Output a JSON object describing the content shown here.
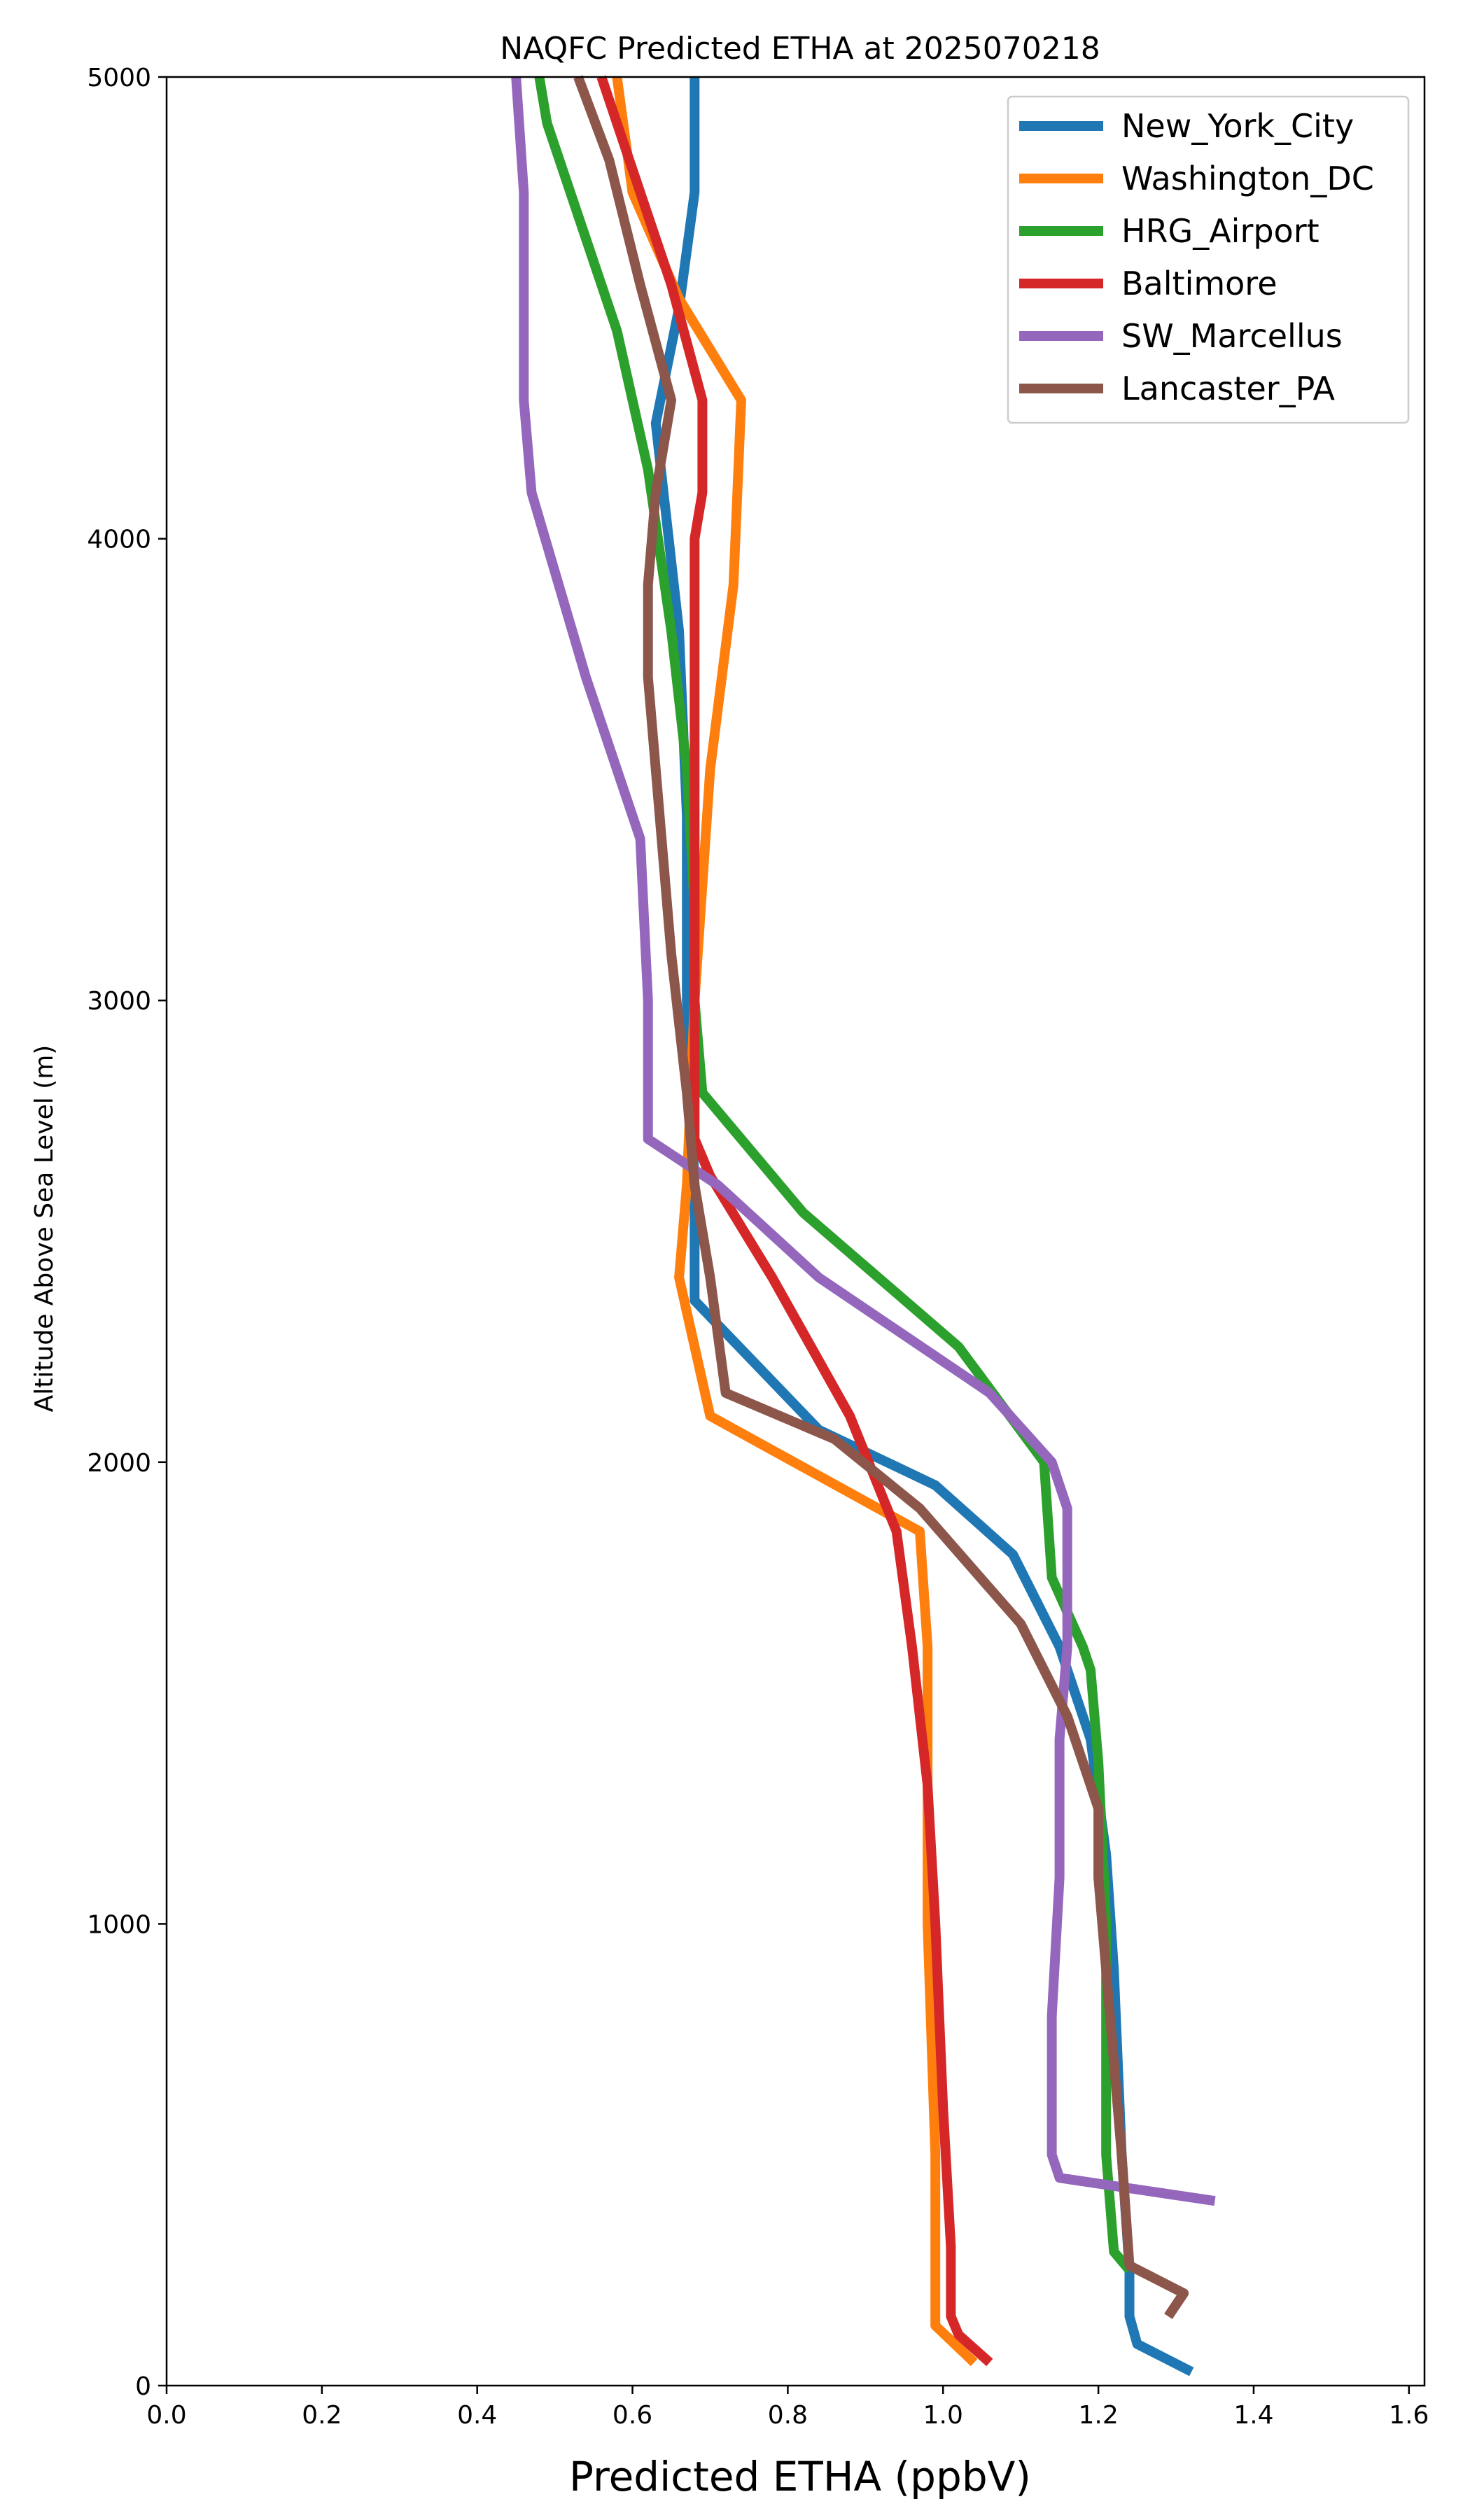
{
  "chart_data": {
    "type": "line",
    "title": "NAQFC Predicted ETHA at 2025070218",
    "xlabel": "Predicted ETHA (ppbV)",
    "ylabel": "Altitude Above Sea Level (m)",
    "xlim": [
      0.0,
      1.62
    ],
    "ylim": [
      0,
      5000
    ],
    "xticks": [
      "0.0",
      "0.2",
      "0.4",
      "0.6",
      "0.8",
      "1.0",
      "1.2",
      "1.4",
      "1.6"
    ],
    "yticks": [
      "0",
      "1000",
      "2000",
      "3000",
      "4000",
      "5000"
    ],
    "grid": false,
    "legend_position": "top-right",
    "series": [
      {
        "name": "New_York_City",
        "color": "#1f77b4",
        "x": [
          1.32,
          1.25,
          1.24,
          1.24,
          1.23,
          1.22,
          1.21,
          1.19,
          1.15,
          1.09,
          0.99,
          0.84,
          0.68,
          0.68,
          0.67,
          0.67,
          0.66,
          0.63,
          0.66,
          0.68,
          0.68
        ],
        "y": [
          30,
          90,
          150,
          250,
          500,
          900,
          1150,
          1400,
          1600,
          1800,
          1950,
          2070,
          2350,
          2600,
          3000,
          3400,
          3800,
          4250,
          4500,
          4750,
          5000
        ]
      },
      {
        "name": "Washington_DC",
        "color": "#ff7f0e",
        "x": [
          1.04,
          0.99,
          0.99,
          0.99,
          0.98,
          0.98,
          0.98,
          0.97,
          0.7,
          0.66,
          0.67,
          0.68,
          0.7,
          0.73,
          0.74,
          0.66,
          0.6,
          0.58
        ],
        "y": [
          50,
          130,
          250,
          500,
          1000,
          1400,
          1600,
          1850,
          2100,
          2400,
          2600,
          3000,
          3500,
          3900,
          4300,
          4520,
          4750,
          5000
        ]
      },
      {
        "name": "HRG_Airport",
        "color": "#2ca02c",
        "x": [
          1.24,
          1.22,
          1.21,
          1.21,
          1.21,
          1.2,
          1.19,
          1.18,
          1.14,
          1.13,
          1.02,
          0.82,
          0.69,
          0.68,
          0.68,
          0.67,
          0.65,
          0.62,
          0.58,
          0.53,
          0.49,
          0.48
        ],
        "y": [
          250,
          290,
          500,
          800,
          1000,
          1350,
          1550,
          1600,
          1750,
          2000,
          2250,
          2540,
          2800,
          3000,
          3200,
          3500,
          3800,
          4150,
          4450,
          4700,
          4900,
          5000
        ]
      },
      {
        "name": "Baltimore",
        "color": "#d62728",
        "x": [
          1.06,
          1.02,
          1.01,
          1.01,
          1.0,
          0.99,
          0.98,
          0.97,
          0.96,
          0.94,
          0.88,
          0.78,
          0.7,
          0.68,
          0.68,
          0.68,
          0.68,
          0.68,
          0.68,
          0.69,
          0.69,
          0.65,
          0.61,
          0.56
        ],
        "y": [
          50,
          110,
          150,
          300,
          600,
          1000,
          1300,
          1450,
          1600,
          1850,
          2100,
          2400,
          2620,
          2700,
          3000,
          3300,
          3600,
          3850,
          4000,
          4100,
          4300,
          4550,
          4750,
          5000
        ]
      },
      {
        "name": "SW_Marcellus",
        "color": "#9467bd",
        "x": [
          1.35,
          1.15,
          1.14,
          1.14,
          1.15,
          1.15,
          1.16,
          1.16,
          1.14,
          1.06,
          0.84,
          0.71,
          0.62,
          0.62,
          0.61,
          0.54,
          0.47,
          0.46,
          0.46,
          0.46,
          0.45
        ],
        "y": [
          400,
          450,
          500,
          800,
          1100,
          1400,
          1600,
          1900,
          2000,
          2150,
          2400,
          2600,
          2700,
          3000,
          3350,
          3700,
          4100,
          4300,
          4550,
          4750,
          5000
        ]
      },
      {
        "name": "Lancaster_PA",
        "color": "#8c564b",
        "x": [
          1.29,
          1.31,
          1.24,
          1.23,
          1.22,
          1.21,
          1.2,
          1.2,
          1.16,
          1.1,
          0.97,
          0.86,
          0.72,
          0.7,
          0.68,
          0.67,
          0.65,
          0.63,
          0.62,
          0.62,
          0.63,
          0.65,
          0.61,
          0.57,
          0.53
        ],
        "y": [
          150,
          200,
          260,
          500,
          700,
          900,
          1100,
          1250,
          1450,
          1650,
          1900,
          2050,
          2150,
          2400,
          2600,
          2800,
          3100,
          3500,
          3700,
          3900,
          4100,
          4300,
          4550,
          4820,
          5000
        ]
      }
    ]
  }
}
